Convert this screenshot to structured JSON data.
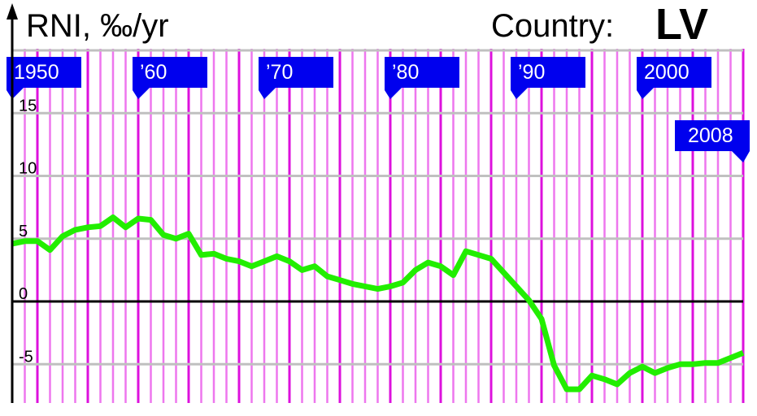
{
  "chart_data": {
    "type": "line",
    "title": "RNI, ‰/yr",
    "country_label": "Country:",
    "country": "LV",
    "xlim": [
      1950,
      2008
    ],
    "ylim": [
      -8,
      20
    ],
    "yticks": [
      -5,
      0,
      5,
      10,
      15
    ],
    "ytick_labels": [
      "-5",
      "0",
      "5",
      "10",
      "15"
    ],
    "grid": true,
    "decade_flags": [
      {
        "year": 1950,
        "label": "1950"
      },
      {
        "year": 1960,
        "label": "’60"
      },
      {
        "year": 1970,
        "label": "’70"
      },
      {
        "year": 1980,
        "label": "’80"
      },
      {
        "year": 1990,
        "label": "’90"
      },
      {
        "year": 2000,
        "label": "2000"
      },
      {
        "year": 2008,
        "label": "2008"
      }
    ],
    "x": [
      1950,
      1951,
      1952,
      1953,
      1954,
      1955,
      1956,
      1957,
      1958,
      1959,
      1960,
      1961,
      1962,
      1963,
      1964,
      1965,
      1966,
      1967,
      1968,
      1969,
      1970,
      1971,
      1972,
      1973,
      1974,
      1975,
      1976,
      1977,
      1978,
      1979,
      1980,
      1981,
      1982,
      1983,
      1984,
      1985,
      1986,
      1987,
      1988,
      1989,
      1990,
      1991,
      1992,
      1993,
      1994,
      1995,
      1996,
      1997,
      1998,
      1999,
      2000,
      2001,
      2002,
      2003,
      2004,
      2005,
      2006,
      2007,
      2008
    ],
    "values": [
      4.6,
      4.8,
      4.8,
      4.1,
      5.2,
      5.7,
      5.9,
      6.0,
      6.7,
      5.9,
      6.6,
      6.5,
      5.3,
      5.0,
      5.4,
      3.7,
      3.8,
      3.4,
      3.2,
      2.8,
      3.2,
      3.6,
      3.2,
      2.5,
      2.8,
      2.0,
      1.7,
      1.4,
      1.2,
      1.0,
      1.2,
      1.5,
      2.5,
      3.1,
      2.8,
      2.1,
      4.0,
      3.7,
      3.4,
      2.3,
      1.2,
      0.1,
      -1.4,
      -5.1,
      -7.0,
      -7.0,
      -5.9,
      -6.2,
      -6.6,
      -5.7,
      -5.2,
      -5.7,
      -5.3,
      -5.0,
      -5.0,
      -4.9,
      -4.9,
      -4.5,
      -4.1
    ],
    "colors": {
      "line": "#22ee00",
      "year_line": "#ee77ee",
      "leap_year_line": "#dd11dd",
      "flag": "#0000ee",
      "grid": "#c0c0c0",
      "axis": "#000000"
    }
  }
}
